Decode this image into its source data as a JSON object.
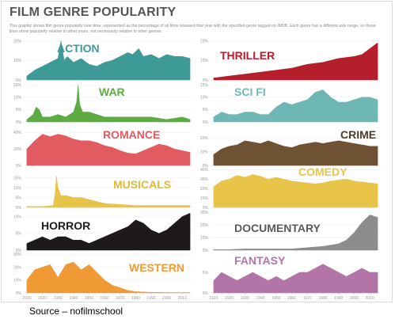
{
  "page": {
    "title": "FILM GENRE POPULARITY",
    "subtitle": "This graphic shows film genre popularity over time, represented as the percentage of all films released that year with the specified genre tagged on IMDB. Each genre has a different axis range, so these lines show popularity relative to other years, not necessarily relative to other genres.",
    "source": "Source – nofilmschool"
  },
  "chart_data": [
    {
      "type": "area",
      "title": "ACTION",
      "color": "#3e9a97",
      "label_color": "#3e9a97",
      "column": "left",
      "row": 0,
      "ylim": [
        0,
        21
      ],
      "yticks": [
        "0%",
        "10%",
        "20%"
      ],
      "x": [
        1910,
        1915,
        1920,
        1925,
        1930,
        1932,
        1934,
        1936,
        1940,
        1945,
        1950,
        1955,
        1960,
        1965,
        1970,
        1975,
        1978,
        1982,
        1985,
        1990,
        1995,
        2000,
        2005,
        2010,
        2015
      ],
      "y": [
        2,
        5,
        7,
        9,
        11,
        20,
        10,
        12,
        9,
        11,
        8,
        7,
        9,
        10,
        12,
        14,
        13,
        16,
        12,
        13,
        11,
        13,
        12,
        12,
        11
      ]
    },
    {
      "type": "area",
      "title": "WAR",
      "color": "#5cab43",
      "label_color": "#5cab43",
      "column": "left",
      "row": 1,
      "ylim": [
        0,
        16
      ],
      "yticks": [
        "0%",
        "5%",
        "10%",
        "15%"
      ],
      "x": [
        1910,
        1914,
        1916,
        1918,
        1920,
        1925,
        1930,
        1935,
        1940,
        1942,
        1943,
        1944,
        1946,
        1950,
        1955,
        1960,
        1965,
        1970,
        1980,
        1990,
        2000,
        2010,
        2015
      ],
      "y": [
        1,
        3,
        6,
        5,
        2,
        2,
        3,
        2,
        4,
        8,
        15,
        7,
        4,
        4,
        3,
        2,
        2,
        2,
        2,
        2,
        1,
        2,
        1
      ]
    },
    {
      "type": "area",
      "title": "ROMANCE",
      "color": "#e15b61",
      "label_color": "#e15b61",
      "column": "left",
      "row": 2,
      "ylim": [
        0,
        50
      ],
      "yticks": [
        "0%",
        "20%",
        "40%"
      ],
      "x": [
        1910,
        1915,
        1920,
        1925,
        1930,
        1935,
        1940,
        1945,
        1950,
        1955,
        1960,
        1965,
        1970,
        1975,
        1980,
        1985,
        1990,
        1995,
        2000,
        2005,
        2010,
        2015
      ],
      "y": [
        20,
        30,
        38,
        35,
        38,
        36,
        32,
        30,
        30,
        28,
        24,
        22,
        18,
        15,
        14,
        18,
        22,
        26,
        24,
        20,
        18,
        16
      ]
    },
    {
      "type": "area",
      "title": "MUSICALS",
      "color": "#e8c448",
      "label_color": "#e0b935",
      "column": "left",
      "row": 3,
      "ylim": [
        0,
        20
      ],
      "yticks": [
        "0%",
        "5%",
        "10%",
        "15%"
      ],
      "x": [
        1910,
        1920,
        1927,
        1928,
        1929,
        1930,
        1932,
        1935,
        1940,
        1945,
        1950,
        1955,
        1960,
        1970,
        1980,
        1990,
        2000,
        2010,
        2015
      ],
      "y": [
        0.5,
        0.5,
        1,
        6,
        16,
        10,
        6,
        6,
        5,
        5,
        4,
        3,
        2,
        1.5,
        1,
        1,
        1,
        1,
        1
      ]
    },
    {
      "type": "area",
      "title": "HORROR",
      "color": "#1e1a1b",
      "label_color": "#1e1a1b",
      "column": "left",
      "row": 4,
      "ylim": [
        0,
        12
      ],
      "yticks": [
        "0%",
        "5%",
        "10%"
      ],
      "x": [
        1910,
        1915,
        1920,
        1925,
        1930,
        1935,
        1940,
        1945,
        1950,
        1955,
        1960,
        1965,
        1970,
        1975,
        1980,
        1985,
        1990,
        1995,
        2000,
        2005,
        2010,
        2015
      ],
      "y": [
        2,
        3,
        4,
        3,
        4,
        4,
        3,
        3,
        2,
        3,
        4,
        5,
        6,
        7,
        9,
        8,
        6,
        5,
        6,
        8,
        10,
        11
      ]
    },
    {
      "type": "area",
      "title": "WESTERN",
      "color": "#ef9a35",
      "label_color": "#ef9a35",
      "column": "left",
      "row": 5,
      "ylim": [
        0,
        32
      ],
      "yticks": [
        "0%",
        "10%",
        "20%",
        "30%"
      ],
      "x": [
        1910,
        1915,
        1920,
        1925,
        1930,
        1935,
        1940,
        1945,
        1950,
        1955,
        1960,
        1965,
        1970,
        1975,
        1980,
        1990,
        2000,
        2010,
        2015
      ],
      "y": [
        10,
        18,
        20,
        22,
        12,
        22,
        24,
        18,
        22,
        16,
        10,
        6,
        4,
        2,
        1,
        0.5,
        0.3,
        0.3,
        0.3
      ]
    },
    {
      "type": "area",
      "title": "THRILLER",
      "color": "#b51f2b",
      "label_color": "#b51f2b",
      "column": "right",
      "row": 0,
      "ylim": [
        0,
        21
      ],
      "yticks": [
        "0%",
        "10%",
        "20%"
      ],
      "x": [
        1910,
        1920,
        1930,
        1940,
        1950,
        1960,
        1970,
        1980,
        1990,
        2000,
        2005,
        2010,
        2015
      ],
      "y": [
        1,
        2,
        3,
        4,
        5,
        6,
        8,
        9,
        11,
        12,
        13,
        16,
        19
      ]
    },
    {
      "type": "area",
      "title": "SCI FI",
      "color": "#6eb7b5",
      "label_color": "#6eb7b5",
      "column": "right",
      "row": 1,
      "ylim": [
        0,
        16
      ],
      "yticks": [
        "0%",
        "5%",
        "10%",
        "15%"
      ],
      "x": [
        1910,
        1915,
        1920,
        1925,
        1930,
        1935,
        1940,
        1945,
        1950,
        1955,
        1960,
        1965,
        1970,
        1975,
        1980,
        1985,
        1990,
        1995,
        2000,
        2005,
        2010,
        2015
      ],
      "y": [
        2,
        4,
        3,
        3,
        4,
        4,
        3,
        3,
        6,
        8,
        7,
        8,
        9,
        12,
        13,
        10,
        8,
        8,
        9,
        10,
        10,
        9
      ]
    },
    {
      "type": "area",
      "title": "CRIME",
      "color": "#6f5134",
      "label_color": "#4a3b2c",
      "column": "right",
      "row": 2,
      "ylim": [
        0,
        30
      ],
      "yticks": [
        "0%",
        "10%",
        "20%"
      ],
      "x": [
        1910,
        1915,
        1920,
        1925,
        1930,
        1935,
        1940,
        1945,
        1950,
        1955,
        1960,
        1965,
        1970,
        1975,
        1980,
        1985,
        1990,
        1995,
        2000,
        2005,
        2010,
        2015
      ],
      "y": [
        8,
        12,
        14,
        15,
        18,
        17,
        16,
        18,
        16,
        14,
        13,
        15,
        16,
        17,
        16,
        17,
        18,
        17,
        16,
        15,
        14,
        14
      ]
    },
    {
      "type": "area",
      "title": "COMEDY",
      "color": "#e8c448",
      "label_color": "#e8c448",
      "column": "right",
      "row": 3,
      "ylim": [
        0,
        42
      ],
      "yticks": [
        "0%",
        "10%",
        "20%",
        "30%",
        "40%"
      ],
      "x": [
        1910,
        1915,
        1920,
        1925,
        1930,
        1935,
        1940,
        1945,
        1950,
        1955,
        1960,
        1965,
        1970,
        1975,
        1980,
        1985,
        1990,
        1995,
        2000,
        2005,
        2010,
        2015
      ],
      "y": [
        22,
        28,
        30,
        34,
        32,
        35,
        33,
        30,
        32,
        30,
        28,
        27,
        26,
        25,
        26,
        28,
        29,
        30,
        28,
        27,
        26,
        25
      ]
    },
    {
      "type": "area",
      "title": "DOCUMENTARY",
      "color": "#8c8c8c",
      "label_color": "#5a5a5a",
      "column": "right",
      "row": 4,
      "ylim": [
        0,
        32
      ],
      "yticks": [
        "0%",
        "10%",
        "20%",
        "30%"
      ],
      "x": [
        1910,
        1920,
        1930,
        1940,
        1950,
        1960,
        1970,
        1980,
        1990,
        1995,
        2000,
        2005,
        2010,
        2015
      ],
      "y": [
        0.5,
        0.5,
        1,
        1,
        1,
        1,
        2,
        3,
        5,
        8,
        14,
        22,
        28,
        26
      ]
    },
    {
      "type": "area",
      "title": "FANTASY",
      "color": "#b374a8",
      "label_color": "#b374a8",
      "column": "right",
      "row": 5,
      "ylim": [
        0,
        10
      ],
      "yticks": [
        "0%",
        "5%"
      ],
      "x": [
        1910,
        1915,
        1920,
        1925,
        1930,
        1935,
        1940,
        1945,
        1950,
        1955,
        1960,
        1965,
        1970,
        1975,
        1980,
        1985,
        1990,
        1995,
        2000,
        2005,
        2010,
        2015
      ],
      "y": [
        3,
        5,
        4,
        3,
        4,
        5,
        4,
        3,
        4,
        3,
        4,
        5,
        5,
        6,
        7,
        6,
        5,
        4,
        5,
        6,
        5,
        5
      ]
    }
  ],
  "x_axis": {
    "xlim": [
      1908,
      2017
    ],
    "ticks": [
      "1910",
      "1920",
      "1930",
      "1940",
      "1950",
      "1960",
      "1970",
      "1980",
      "1990",
      "2000",
      "2010"
    ]
  }
}
